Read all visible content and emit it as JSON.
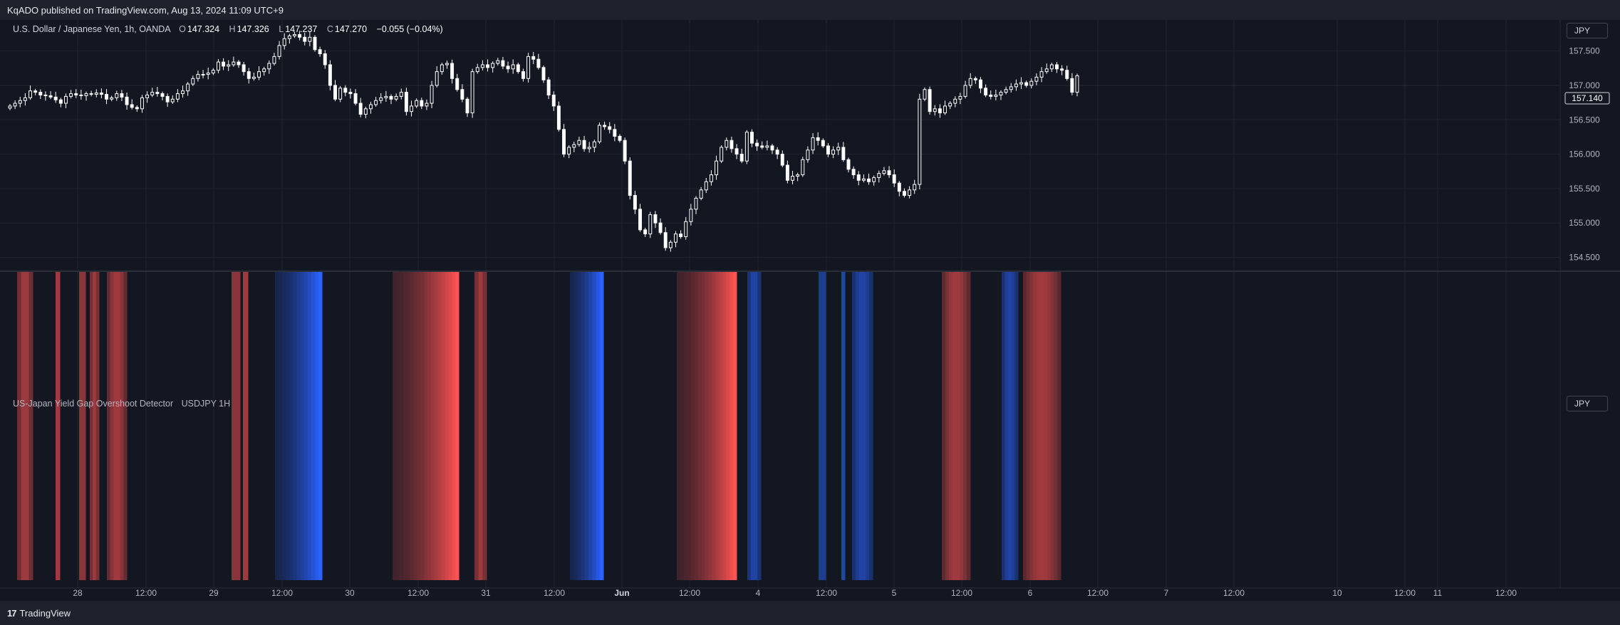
{
  "header": {
    "published": "KqADO published on TradingView.com, Aug 13, 2024 11:09 UTC+9"
  },
  "legend": {
    "symbol": "U.S. Dollar / Japanese Yen, 1h, OANDA",
    "open_label": "O",
    "open": "147.324",
    "high_label": "H",
    "high": "147.326",
    "low_label": "L",
    "low": "147.237",
    "close_label": "C",
    "close": "147.270",
    "change": "−0.055 (−0.04%)"
  },
  "currency_button": "JPY",
  "price_tag": "157.140",
  "indicator": {
    "name": "US-Japan Yield Gap Overshoot Detector",
    "params": "USDJPY 1H",
    "currency_button": "JPY",
    "colors": {
      "red": "#ff5252",
      "blue": "#2962ff"
    }
  },
  "footer": {
    "brand": "TradingView"
  },
  "colors": {
    "background": "#131722",
    "grid": "#1f2430",
    "candle_up": "#ffffff",
    "candle_down": "#ffffff"
  },
  "chart_data": {
    "type": "candlestick",
    "title": "U.S. Dollar / Japanese Yen, 1h, OANDA",
    "ylim": [
      154.35,
      157.9
    ],
    "y_ticks": [
      "157.500",
      "157.000",
      "156.500",
      "156.000",
      "155.500",
      "155.000",
      "154.500"
    ],
    "y_tick_values": [
      157.5,
      157.0,
      156.5,
      156.0,
      155.5,
      155.0,
      154.5
    ],
    "x_ticks": [
      "28",
      "12:00",
      "29",
      "12:00",
      "30",
      "12:00",
      "31",
      "12:00",
      "Jun",
      "12:00",
      "4",
      "12:00",
      "5",
      "12:00",
      "6",
      "12:00",
      "7",
      "12:00",
      "10",
      "12:00",
      "11",
      "12:00"
    ],
    "grid": true,
    "close_series": [
      156.7,
      156.74,
      156.78,
      156.82,
      156.92,
      156.9,
      156.86,
      156.85,
      156.83,
      156.79,
      156.74,
      156.84,
      156.88,
      156.86,
      156.85,
      156.88,
      156.87,
      156.89,
      156.87,
      156.8,
      156.82,
      156.88,
      156.83,
      156.72,
      156.68,
      156.66,
      156.82,
      156.86,
      156.9,
      156.88,
      156.84,
      156.76,
      156.8,
      156.88,
      156.92,
      157.02,
      157.1,
      157.16,
      157.16,
      157.18,
      157.22,
      157.34,
      157.28,
      157.3,
      157.34,
      157.3,
      157.2,
      157.1,
      157.12,
      157.2,
      157.24,
      157.32,
      157.42,
      157.58,
      157.68,
      157.72,
      157.74,
      157.7,
      157.64,
      157.7,
      157.52,
      157.46,
      157.3,
      157.0,
      156.8,
      156.96,
      156.9,
      156.88,
      156.74,
      156.58,
      156.66,
      156.72,
      156.78,
      156.82,
      156.84,
      156.8,
      156.84,
      156.9,
      156.62,
      156.7,
      156.78,
      156.7,
      156.74,
      157.0,
      157.2,
      157.3,
      157.32,
      157.1,
      156.94,
      156.8,
      156.6,
      157.2,
      157.26,
      157.3,
      157.26,
      157.32,
      157.36,
      157.28,
      157.24,
      157.3,
      157.2,
      157.1,
      157.42,
      157.38,
      157.26,
      157.08,
      156.86,
      156.7,
      156.36,
      156.0,
      156.1,
      156.14,
      156.2,
      156.08,
      156.1,
      156.18,
      156.42,
      156.4,
      156.36,
      156.26,
      156.2,
      155.9,
      155.4,
      155.2,
      154.9,
      154.84,
      155.12,
      155.0,
      154.86,
      154.64,
      154.72,
      154.84,
      154.8,
      155.02,
      155.2,
      155.36,
      155.48,
      155.6,
      155.7,
      155.9,
      156.1,
      156.2,
      156.08,
      156.0,
      155.9,
      156.32,
      156.16,
      156.12,
      156.1,
      156.12,
      156.06,
      156.0,
      155.84,
      155.62,
      155.68,
      155.7,
      155.92,
      156.06,
      156.24,
      156.2,
      156.12,
      156.0,
      156.06,
      156.1,
      155.92,
      155.78,
      155.7,
      155.62,
      155.64,
      155.6,
      155.66,
      155.72,
      155.76,
      155.7,
      155.58,
      155.46,
      155.4,
      155.48,
      155.56,
      156.8,
      156.94,
      156.62,
      156.66,
      156.6,
      156.7,
      156.74,
      156.8,
      156.84,
      157.0,
      157.1,
      157.08,
      156.96,
      156.86,
      156.84,
      156.86,
      156.9,
      156.94,
      156.98,
      157.02,
      157.04,
      157.0,
      157.06,
      157.12,
      157.2,
      157.24,
      157.3,
      157.24,
      157.22,
      157.1,
      156.9,
      157.14
    ],
    "indicator_bands": {
      "red": [
        [
          24,
          46
        ],
        [
          78,
          84
        ],
        [
          111,
          120
        ],
        [
          126,
          139
        ],
        [
          150,
          178
        ],
        [
          325,
          337
        ],
        [
          341,
          348
        ],
        [
          551,
          644
        ],
        [
          666,
          683
        ],
        [
          950,
          1034
        ],
        [
          1322,
          1362
        ],
        [
          1411,
          1419
        ],
        [
          1436,
          1489
        ]
      ],
      "blue": [
        [
          386,
          452
        ],
        [
          800,
          847
        ],
        [
          1049,
          1068
        ],
        [
          1149,
          1159
        ],
        [
          1181,
          1186
        ],
        [
          1196,
          1225
        ],
        [
          1406,
          1429
        ]
      ]
    }
  }
}
